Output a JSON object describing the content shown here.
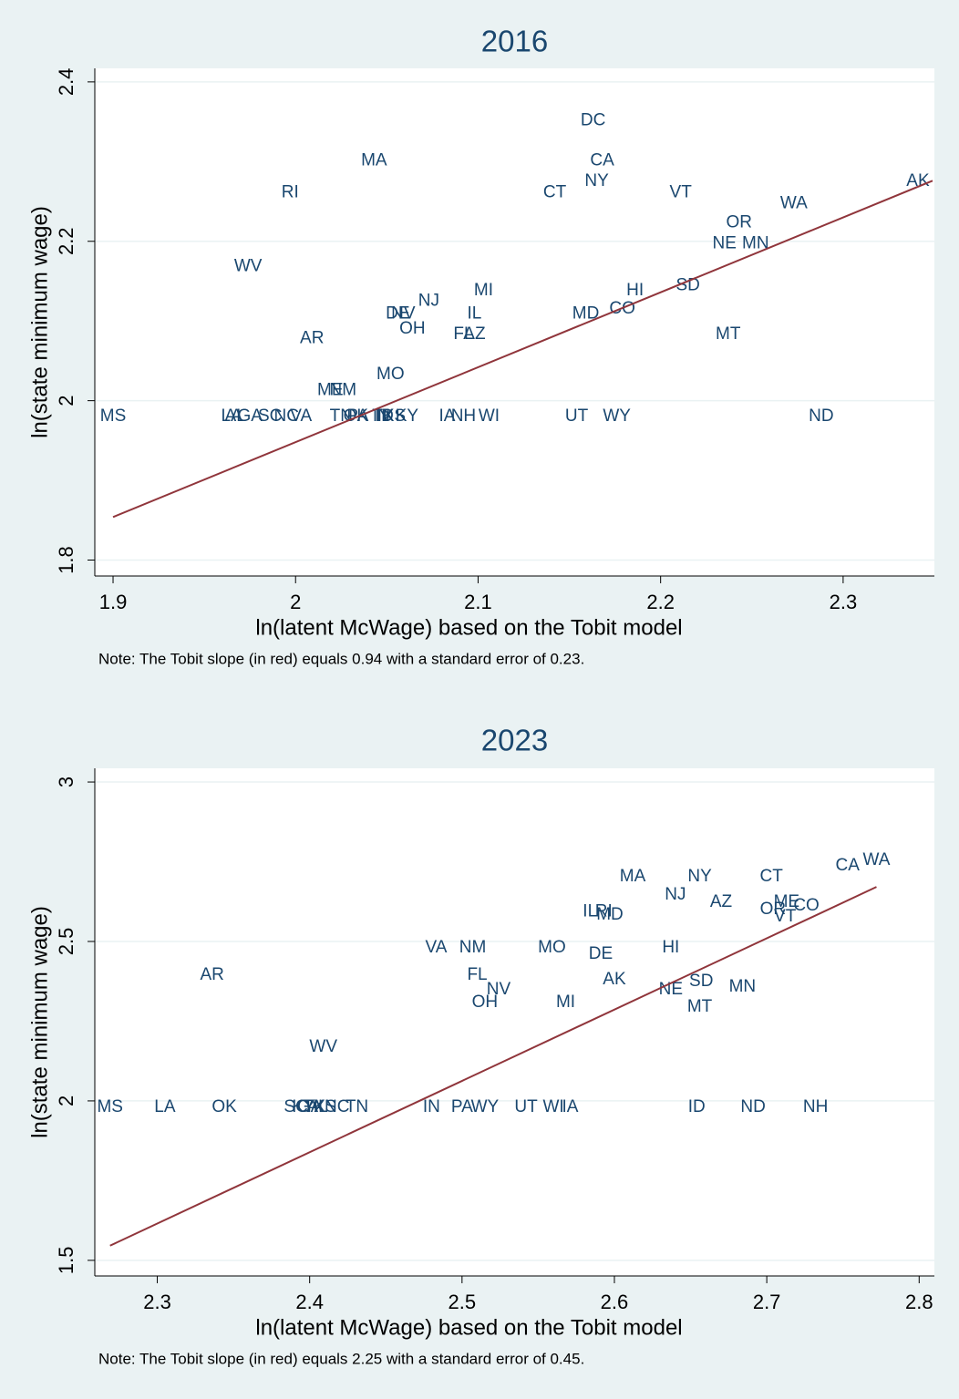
{
  "chart_data": [
    {
      "type": "scatter",
      "title": "2016",
      "x_label": "ln(latent McWage) based on the Tobit model",
      "y_label": "ln(state minimum wage)",
      "note": "Note: The Tobit slope (in red) equals 0.94 with a standard error of 0.23.",
      "xlim": [
        1.89,
        2.35
      ],
      "ylim": [
        1.78,
        2.417
      ],
      "xticks": [
        1.9,
        2,
        2.1,
        2.2,
        2.3
      ],
      "yticks": [
        1.8,
        2,
        2.2,
        2.4
      ],
      "grid": true,
      "label_color": "#1a476f",
      "fit_color": "#90353b",
      "fit_x": [
        1.9,
        2.349
      ],
      "fit_y": [
        1.854,
        2.276
      ],
      "labels": [
        "MS",
        "LA",
        "AL",
        "GA",
        "SC",
        "NC",
        "VA",
        "TN",
        "OK",
        "PA",
        "TX",
        "IN",
        "ID",
        "KS",
        "KY",
        "IA",
        "NH",
        "WI",
        "UT",
        "WY",
        "ND",
        "MA",
        "RI",
        "WV",
        "AR",
        "ME",
        "NM",
        "MO",
        "DE",
        "NV",
        "OH",
        "NJ",
        "IL",
        "FL",
        "AZ",
        "MI",
        "DC",
        "CA",
        "NY",
        "CT",
        "MD",
        "CO",
        "HI",
        "VT",
        "SD",
        "MT",
        "OR",
        "NE",
        "MN",
        "WA",
        "AK"
      ],
      "x": [
        1.9,
        1.965,
        1.967,
        1.975,
        1.986,
        1.995,
        2.003,
        2.025,
        2.033,
        2.034,
        2.048,
        2.047,
        2.049,
        2.054,
        2.061,
        2.083,
        2.092,
        2.106,
        2.154,
        2.176,
        2.288,
        2.043,
        1.997,
        1.974,
        2.009,
        2.019,
        2.026,
        2.052,
        2.056,
        2.059,
        2.064,
        2.073,
        2.098,
        2.092,
        2.098,
        2.103,
        2.163,
        2.168,
        2.165,
        2.142,
        2.159,
        2.179,
        2.186,
        2.211,
        2.215,
        2.237,
        2.243,
        2.235,
        2.252,
        2.273,
        2.341
      ],
      "y": [
        1.98,
        1.98,
        1.98,
        1.98,
        1.98,
        1.98,
        1.98,
        1.98,
        1.98,
        1.98,
        1.98,
        1.98,
        1.98,
        1.98,
        1.98,
        1.98,
        1.98,
        1.98,
        1.98,
        1.98,
        1.98,
        2.301,
        2.261,
        2.168,
        2.078,
        2.013,
        2.013,
        2.033,
        2.109,
        2.109,
        2.09,
        2.125,
        2.109,
        2.083,
        2.083,
        2.138,
        2.351,
        2.301,
        2.275,
        2.261,
        2.109,
        2.115,
        2.138,
        2.261,
        2.144,
        2.083,
        2.223,
        2.197,
        2.197,
        2.247,
        2.275
      ]
    },
    {
      "type": "scatter",
      "title": "2023",
      "x_label": "ln(latent McWage) based on the Tobit model",
      "y_label": "ln(state minimum wage)",
      "note": "Note: The Tobit slope (in red) equals 2.25 with a standard error of 0.45.",
      "xlim": [
        2.259,
        2.81
      ],
      "ylim": [
        1.451,
        3.043
      ],
      "xticks": [
        2.3,
        2.4,
        2.5,
        2.6,
        2.7,
        2.8
      ],
      "yticks": [
        1.5,
        2,
        2.5,
        3
      ],
      "grid": true,
      "label_color": "#1a476f",
      "fit_color": "#90353b",
      "fit_x": [
        2.269,
        2.772
      ],
      "fit_y": [
        1.546,
        2.671
      ],
      "labels": [
        "MS",
        "LA",
        "OK",
        "SC",
        "KY",
        "GA",
        "TX",
        "AL",
        "KS",
        "NC",
        "TN",
        "IN",
        "PA",
        "WY",
        "UT",
        "WI",
        "IA",
        "ID",
        "ND",
        "NH",
        "AR",
        "WV",
        "VA",
        "NM",
        "FL",
        "NV",
        "OH",
        "MO",
        "MI",
        "IL",
        "RI",
        "MD",
        "DE",
        "AK",
        "MA",
        "NJ",
        "NY",
        "AZ",
        "HI",
        "NE",
        "SD",
        "MT",
        "MN",
        "CT",
        "ME",
        "OR",
        "CO",
        "VT",
        "CA",
        "WA"
      ],
      "x": [
        2.269,
        2.305,
        2.344,
        2.391,
        2.396,
        2.4,
        2.403,
        2.405,
        2.41,
        2.418,
        2.431,
        2.48,
        2.5,
        2.515,
        2.542,
        2.56,
        2.571,
        2.654,
        2.691,
        2.732,
        2.336,
        2.409,
        2.483,
        2.507,
        2.51,
        2.524,
        2.515,
        2.559,
        2.568,
        2.584,
        2.593,
        2.597,
        2.591,
        2.6,
        2.612,
        2.64,
        2.656,
        2.67,
        2.637,
        2.637,
        2.657,
        2.656,
        2.684,
        2.703,
        2.713,
        2.704,
        2.726,
        2.712,
        2.753,
        2.772
      ],
      "y": [
        1.98,
        1.98,
        1.98,
        1.98,
        1.98,
        1.98,
        1.98,
        1.98,
        1.98,
        1.98,
        1.98,
        1.98,
        1.98,
        1.98,
        1.98,
        1.98,
        1.98,
        1.98,
        1.98,
        1.98,
        2.394,
        2.169,
        2.48,
        2.48,
        2.394,
        2.349,
        2.309,
        2.48,
        2.309,
        2.593,
        2.593,
        2.583,
        2.46,
        2.38,
        2.703,
        2.646,
        2.703,
        2.623,
        2.48,
        2.349,
        2.374,
        2.294,
        2.357,
        2.703,
        2.623,
        2.6,
        2.611,
        2.577,
        2.737,
        2.754
      ]
    }
  ]
}
